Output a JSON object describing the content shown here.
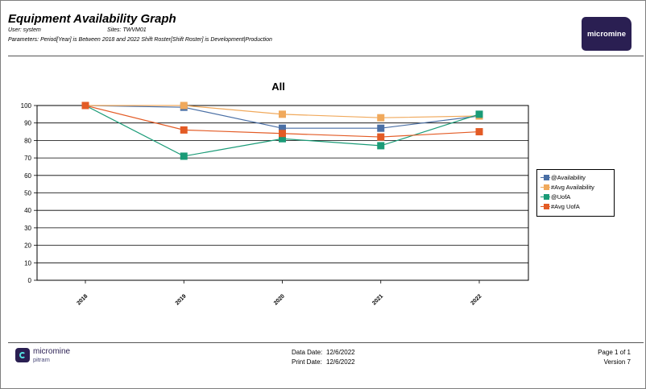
{
  "report": {
    "title": "Equipment Availability Graph",
    "user_line": "User: system",
    "sites_line": "Sites: TWVM01",
    "params_line": "Parameters: Period[Year] is Between 2018 and 2022 Shift Roster[Shift Roster] is Development|Production",
    "logo_text": "micromine"
  },
  "footer": {
    "brand": "micromine",
    "brand_sub": "pitram",
    "data_date_label": "Data Date:",
    "data_date_value": "12/6/2022",
    "print_date_label": "Print Date:",
    "print_date_value": "12/6/2022",
    "page": "Page 1 of 1",
    "version": "Version 7"
  },
  "chart_data": {
    "type": "line",
    "title": "All",
    "xlabel": "",
    "ylabel": "",
    "categories": [
      "2018",
      "2019",
      "2020",
      "2021",
      "2022"
    ],
    "ylim": [
      0,
      100
    ],
    "yticks": [
      0,
      10,
      20,
      30,
      40,
      50,
      60,
      70,
      80,
      90,
      100
    ],
    "grid": true,
    "legend_position": "right",
    "series": [
      {
        "name": "@Availability",
        "color": "#4a6fa5",
        "values": [
          100,
          99,
          87,
          87,
          94
        ]
      },
      {
        "name": "#Avg Availability",
        "color": "#f0a95c",
        "values": [
          100,
          100,
          95,
          93,
          94
        ]
      },
      {
        "name": "@UofA",
        "color": "#1a9b77",
        "values": [
          100,
          71,
          81,
          77,
          95
        ]
      },
      {
        "name": "#Avg UofA",
        "color": "#e35b25",
        "values": [
          100,
          86,
          84,
          82,
          85
        ]
      }
    ]
  }
}
